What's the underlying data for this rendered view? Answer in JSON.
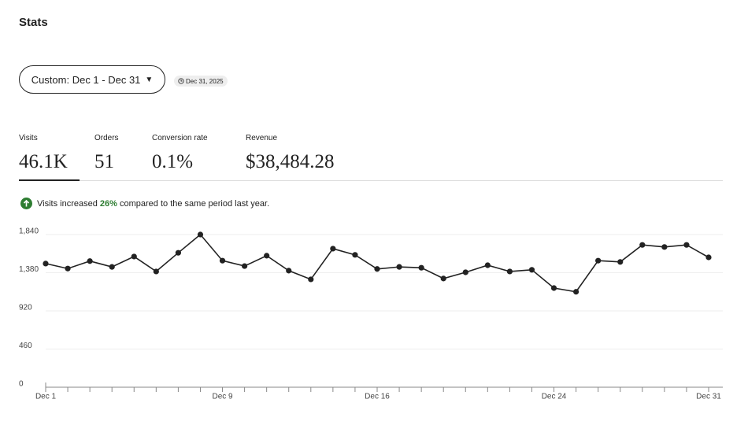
{
  "header": {
    "title": "Stats"
  },
  "filters": {
    "date_range": "Custom: Dec 1 - Dec 31",
    "as_of": "Dec 31, 2025"
  },
  "metrics": [
    {
      "label": "Visits",
      "value": "46.1K"
    },
    {
      "label": "Orders",
      "value": "51"
    },
    {
      "label": "Conversion rate",
      "value": "0.1%"
    },
    {
      "label": "Revenue",
      "value": "$38,484.28"
    }
  ],
  "notice": {
    "prefix": "Visits increased",
    "highlight": "26%",
    "suffix": "compared to the same period last year."
  },
  "chart_data": {
    "type": "line",
    "color": "#222222",
    "categories": [
      "Dec 1",
      null,
      null,
      null,
      null,
      null,
      null,
      null,
      "Dec 9",
      null,
      null,
      null,
      null,
      null,
      null,
      "Dec 16",
      null,
      null,
      null,
      null,
      null,
      null,
      null,
      "Dec 24",
      null,
      null,
      null,
      null,
      null,
      null,
      "Dec 31"
    ],
    "values": [
      1490,
      1430,
      1520,
      1450,
      1575,
      1395,
      1620,
      1840,
      1525,
      1460,
      1585,
      1405,
      1300,
      1670,
      1595,
      1425,
      1450,
      1440,
      1310,
      1385,
      1470,
      1395,
      1415,
      1195,
      1150,
      1525,
      1510,
      1715,
      1690,
      1715,
      1565
    ],
    "ylim": [
      0,
      1840
    ],
    "yticks": [
      0,
      460,
      920,
      {
        "value": 1380,
        "label": "1,380"
      },
      {
        "value": 1840,
        "label": "1,840"
      }
    ],
    "grid": true
  }
}
